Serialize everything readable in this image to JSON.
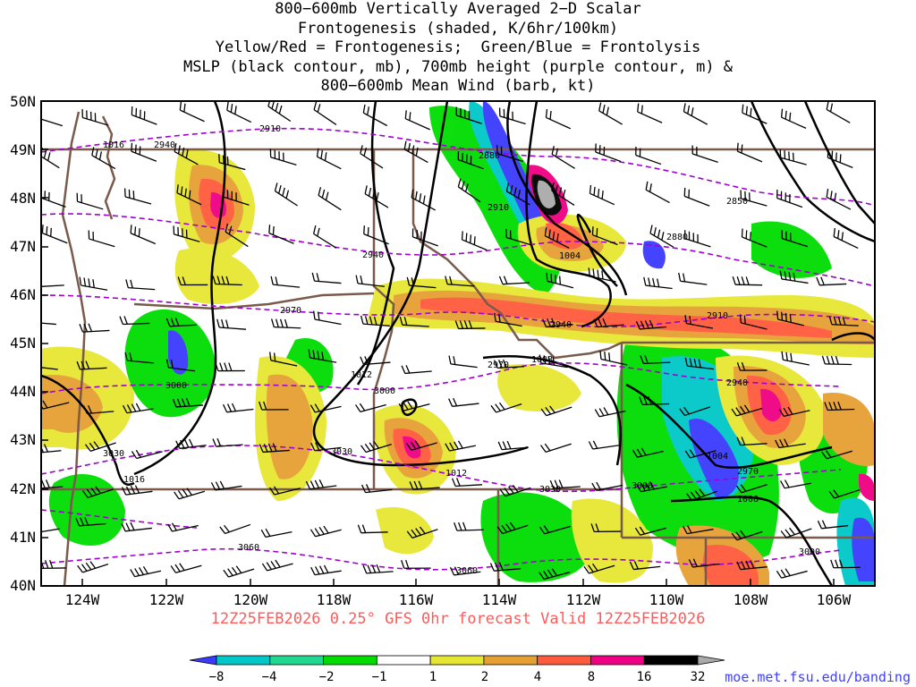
{
  "title": {
    "line1": "800−600mb Vertically Averaged 2−D Scalar",
    "line2": "Frontogenesis (shaded, K/6hr/100km)",
    "line3": "Yellow/Red = Frontogenesis;  Green/Blue = Frontolysis",
    "line4": "MSLP (black contour, mb), 700mb height (purple contour, m) &",
    "line5": "800−600mb Mean Wind (barb, kt)"
  },
  "axes": {
    "lat_labels": [
      "50N",
      "49N",
      "48N",
      "47N",
      "46N",
      "45N",
      "44N",
      "43N",
      "42N",
      "41N",
      "40N"
    ],
    "lon_labels": [
      "124W",
      "122W",
      "120W",
      "118W",
      "116W",
      "114W",
      "112W",
      "110W",
      "108W",
      "106W"
    ]
  },
  "contours": {
    "height_labels": [
      "2910",
      "2940",
      "2880",
      "2910",
      "2850",
      "2880",
      "2940",
      "2970",
      "2910",
      "2940",
      "2970",
      "3000",
      "3000",
      "3030",
      "3030",
      "2940",
      "2970",
      "3030",
      "3000",
      "3060",
      "3060",
      "3000"
    ],
    "pressure_labels": [
      "1016",
      "1004",
      "1008",
      "1012",
      "1012",
      "1016",
      "1004",
      "1008"
    ]
  },
  "valid_time": "12Z25FEB2026 0.25° GFS 0hr forecast Valid 12Z25FEB2026",
  "colorbar": {
    "labels": [
      "−8",
      "−4",
      "−2",
      "−1",
      "1",
      "2",
      "4",
      "8",
      "16",
      "32"
    ],
    "colors": [
      "#3b3bff",
      "#00c8c8",
      "#20d890",
      "#00dc00",
      "#ffffff",
      "#e6e632",
      "#e6a032",
      "#ff5a3c",
      "#f00082",
      "#000000",
      "#aaaaaa"
    ]
  },
  "site_link": "moe.met.fsu.edu/banding",
  "colors": {
    "state_borders": "#7a5a4a",
    "pressure_contour": "#000000",
    "height_contour": "#a000d0",
    "valid_text": "#ff5a5a",
    "link_text": "#4040ff"
  }
}
